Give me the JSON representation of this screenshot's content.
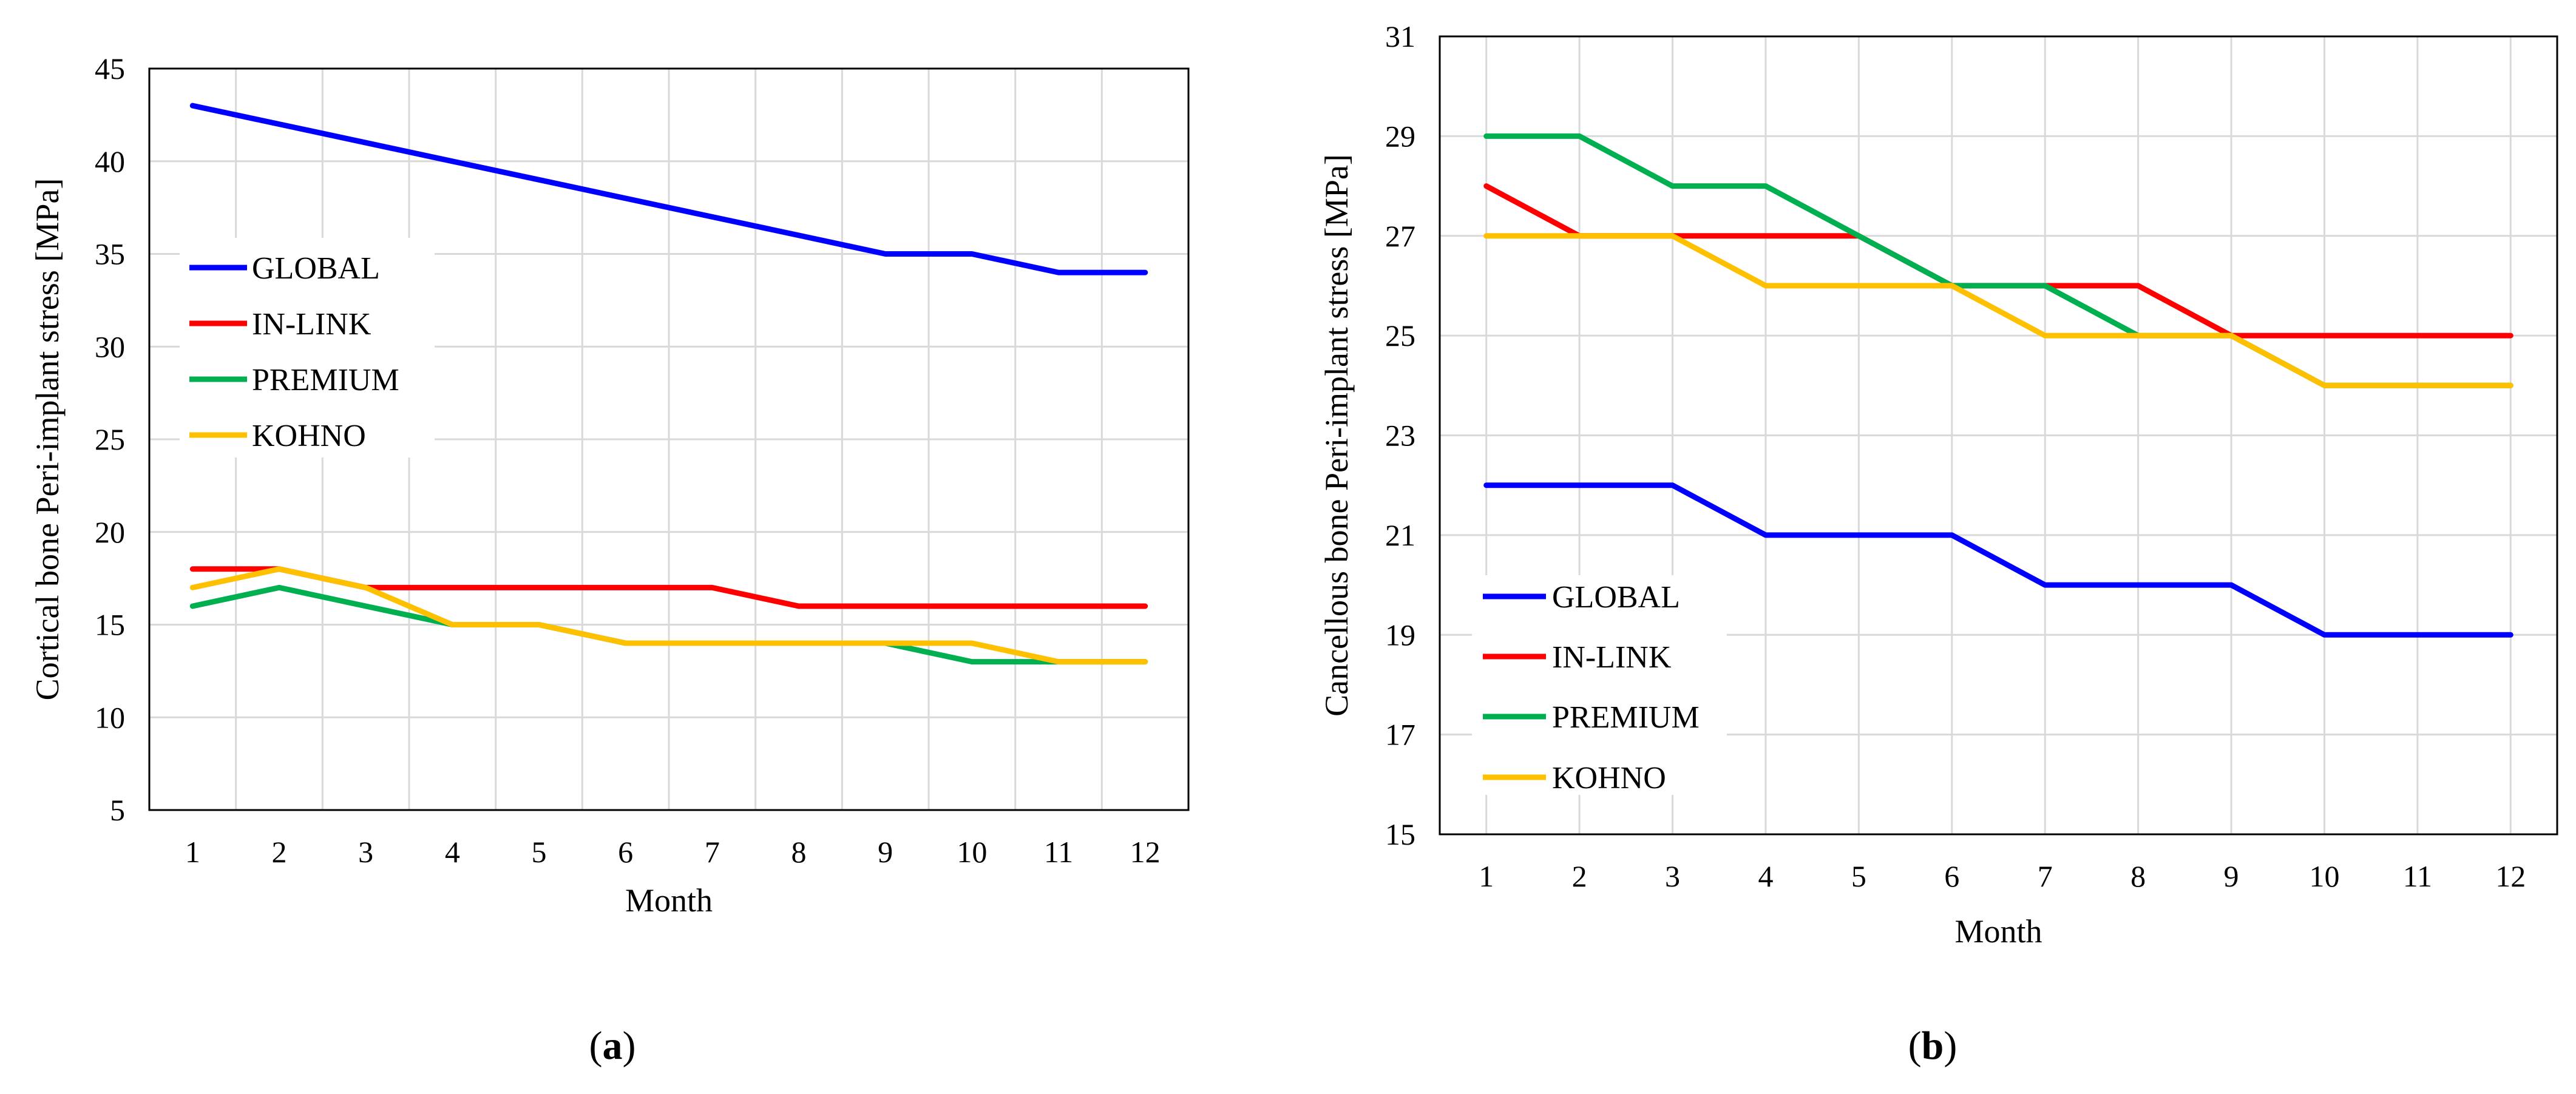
{
  "chart_data": [
    {
      "type": "line",
      "panel_label": "(a)",
      "panel_letter": "a",
      "title": "",
      "xlabel": "Month",
      "ylabel": "Cortical bone Peri-implant stress [MPa]",
      "x": [
        1,
        2,
        3,
        4,
        5,
        6,
        7,
        8,
        9,
        10,
        11,
        12
      ],
      "ylim": [
        5,
        45
      ],
      "yticks": [
        5,
        10,
        15,
        20,
        25,
        30,
        35,
        40,
        45
      ],
      "grid": true,
      "legend_placement": "left",
      "series": [
        {
          "name": "GLOBAL",
          "color": "#0000ff",
          "values": [
            43,
            42,
            41,
            40,
            39,
            38,
            37,
            36,
            35,
            35,
            34,
            34
          ]
        },
        {
          "name": "IN-LINK",
          "color": "#ff0000",
          "values": [
            18,
            18,
            17,
            17,
            17,
            17,
            17,
            16,
            16,
            16,
            16,
            16
          ]
        },
        {
          "name": "PREMIUM",
          "color": "#00b050",
          "values": [
            16,
            17,
            16,
            15,
            15,
            14,
            14,
            14,
            14,
            13,
            13,
            13
          ]
        },
        {
          "name": "KOHNO",
          "color": "#ffc000",
          "values": [
            17,
            18,
            17,
            15,
            15,
            14,
            14,
            14,
            14,
            14,
            13,
            13
          ]
        }
      ]
    },
    {
      "type": "line",
      "panel_label": "(b)",
      "panel_letter": "b",
      "title": "",
      "xlabel": "Month",
      "ylabel": "Cancellous bone Peri-implant stress [MPa]",
      "x": [
        1,
        2,
        3,
        4,
        5,
        6,
        7,
        8,
        9,
        10,
        11,
        12
      ],
      "ylim": [
        15,
        31
      ],
      "yticks": [
        15,
        17,
        19,
        21,
        23,
        25,
        27,
        29,
        31
      ],
      "grid": true,
      "legend_placement": "bottom-left",
      "series": [
        {
          "name": "GLOBAL",
          "color": "#0000ff",
          "values": [
            22,
            22,
            22,
            21,
            21,
            21,
            20,
            20,
            20,
            19,
            19,
            19
          ]
        },
        {
          "name": "IN-LINK",
          "color": "#ff0000",
          "values": [
            28,
            27,
            27,
            27,
            27,
            26,
            26,
            26,
            25,
            25,
            25,
            25
          ]
        },
        {
          "name": "PREMIUM",
          "color": "#00b050",
          "values": [
            29,
            29,
            28,
            28,
            27,
            26,
            26,
            25,
            25,
            24,
            24,
            24
          ]
        },
        {
          "name": "KOHNO",
          "color": "#ffc000",
          "values": [
            27,
            27,
            27,
            26,
            26,
            26,
            25,
            25,
            25,
            24,
            24,
            24
          ]
        }
      ]
    }
  ]
}
